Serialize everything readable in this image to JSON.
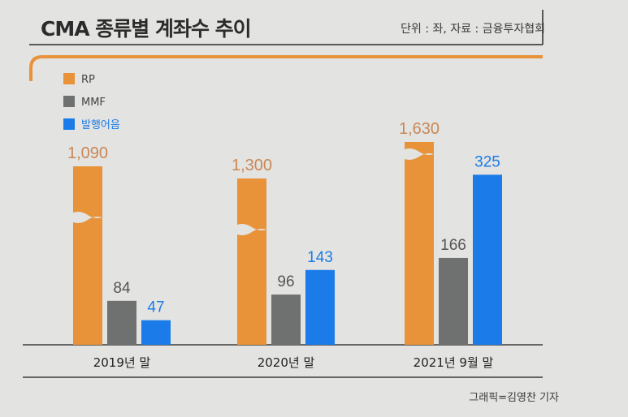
{
  "header": {
    "title": "CMA 종류별 계좌수 추이",
    "source": "단위 : 좌, 자료 : 금융투자협회"
  },
  "footer": {
    "credit": "그래픽=김영찬 기자"
  },
  "colors": {
    "accent": "#e8923a",
    "rp": "#e8923a",
    "mmf": "#6f7070",
    "paper": "#1b7be8",
    "rp_label": "#c88857",
    "mmf_label": "#555555",
    "paper_label": "#1b7be8"
  },
  "chart_data": {
    "type": "bar",
    "title": "CMA 종류별 계좌수 추이",
    "unit": "좌",
    "categories": [
      "2019년 말",
      "2020년 말",
      "2021년 9월 말"
    ],
    "series": [
      {
        "name": "RP",
        "values": [
          1090,
          1300,
          1630
        ],
        "labels": [
          "1,090",
          "1,300",
          "1,630"
        ]
      },
      {
        "name": "MMF",
        "values": [
          84,
          96,
          166
        ],
        "labels": [
          "84",
          "96",
          "166"
        ]
      },
      {
        "name": "발행어음",
        "values": [
          47,
          143,
          325
        ],
        "labels": [
          "47",
          "143",
          "325"
        ]
      }
    ],
    "axis_break": "RP bars truncated with wavy break marks",
    "legend_position": "top-left",
    "grid": false
  }
}
